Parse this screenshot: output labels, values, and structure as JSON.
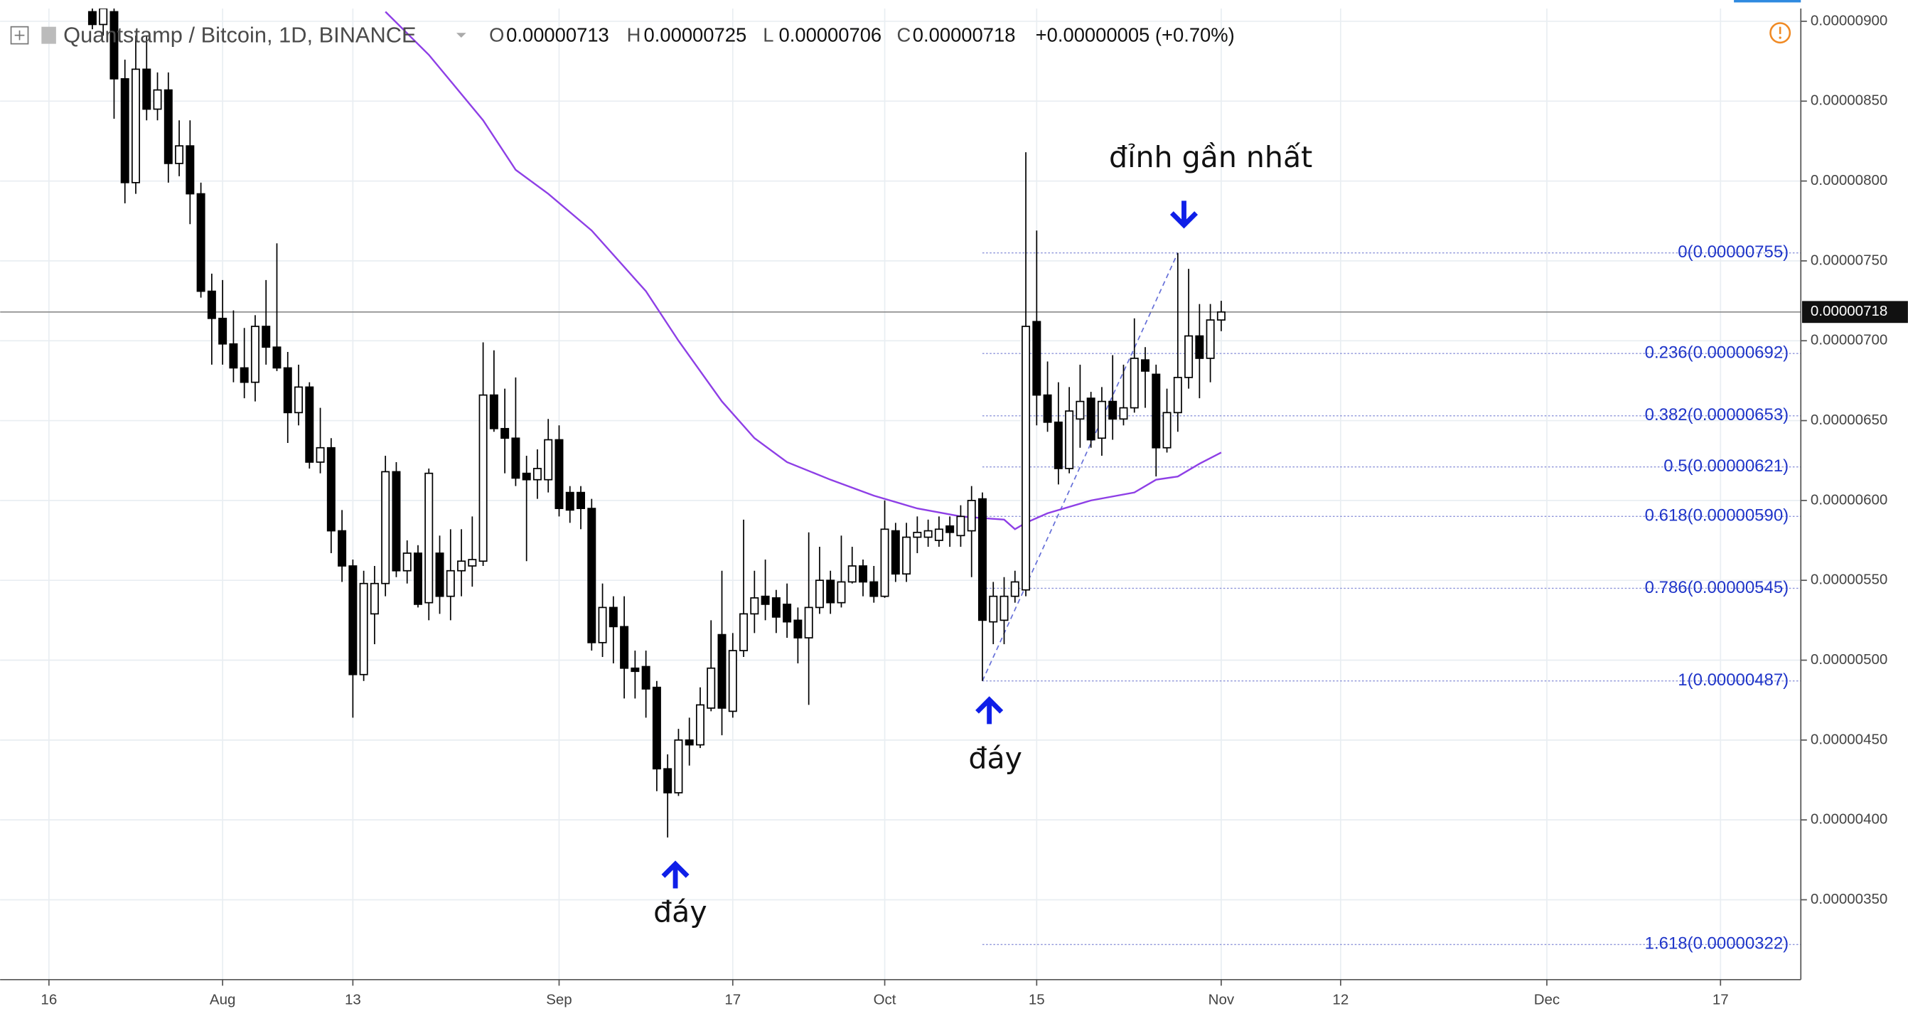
{
  "chart_data": {
    "type": "candlestick",
    "title": "Quantstamp / Bitcoin, 1D, BINANCE",
    "ohlc_header": [
      {
        "label": "O",
        "value": "0.00000713"
      },
      {
        "label": "H",
        "value": "0.00000725"
      },
      {
        "label": "L",
        "value": "0.00000706"
      },
      {
        "label": "C",
        "value": "0.00000718"
      }
    ],
    "change": "+0.00000005 (+0.70%)",
    "xlim": [
      -4.5,
      161.4
    ],
    "xticks": [
      {
        "value": 0,
        "label": "16"
      },
      {
        "value": 16,
        "label": "Aug"
      },
      {
        "value": 28,
        "label": "13"
      },
      {
        "value": 47,
        "label": "Sep"
      },
      {
        "value": 63,
        "label": "17"
      },
      {
        "value": 77,
        "label": "Oct"
      },
      {
        "value": 91,
        "label": "15"
      },
      {
        "value": 108,
        "label": "Nov"
      },
      {
        "value": 119,
        "label": "12"
      },
      {
        "value": 138,
        "label": "Dec"
      },
      {
        "value": 154,
        "label": "17"
      }
    ],
    "ylim": [
      3e-06,
      9.08e-06
    ],
    "yticks": [
      {
        "value": 3.5e-06,
        "label": "0.00000350"
      },
      {
        "value": 4e-06,
        "label": "0.00000400"
      },
      {
        "value": 4.5e-06,
        "label": "0.00000450"
      },
      {
        "value": 5e-06,
        "label": "0.00000500"
      },
      {
        "value": 5.5e-06,
        "label": "0.00000550"
      },
      {
        "value": 6e-06,
        "label": "0.00000600"
      },
      {
        "value": 6.5e-06,
        "label": "0.00000650"
      },
      {
        "value": 7e-06,
        "label": "0.00000700"
      },
      {
        "value": 7.5e-06,
        "label": "0.00000750"
      },
      {
        "value": 8e-06,
        "label": "0.00000800"
      },
      {
        "value": 8.5e-06,
        "label": "0.00000850"
      },
      {
        "value": 9e-06,
        "label": "0.00000900"
      }
    ],
    "grid": true,
    "colors": {
      "up": "#ffffff",
      "down": "#000000",
      "outline": "#000000"
    },
    "candles": {
      "x": [
        4,
        5,
        6,
        7,
        8,
        9,
        10,
        11,
        12,
        13,
        14,
        15,
        16,
        17,
        18,
        19,
        20,
        21,
        22,
        23,
        24,
        25,
        26,
        27,
        28,
        29,
        30,
        31,
        32,
        33,
        34,
        35,
        36,
        37,
        38,
        39,
        40,
        41,
        42,
        43,
        44,
        45,
        46,
        47,
        48,
        49,
        50,
        51,
        52,
        53,
        54,
        55,
        56,
        57,
        58,
        59,
        60,
        61,
        62,
        63,
        64,
        65,
        66,
        67,
        68,
        69,
        70,
        71,
        72,
        73,
        74,
        75,
        76,
        77,
        78,
        79,
        80,
        81,
        82,
        83,
        84,
        85,
        86,
        87,
        88,
        89,
        90,
        91,
        92,
        93,
        94,
        95,
        96,
        97,
        98,
        99,
        100,
        101,
        102,
        103,
        104,
        105,
        106,
        107,
        108
      ],
      "open": [
        9.06e-06,
        8.98e-06,
        9.06e-06,
        8.64e-06,
        7.99e-06,
        8.7e-06,
        8.45e-06,
        8.57e-06,
        8.11e-06,
        8.22e-06,
        7.92e-06,
        7.31e-06,
        7.14e-06,
        6.98e-06,
        6.83e-06,
        6.74e-06,
        7.09e-06,
        6.96e-06,
        6.83e-06,
        6.55e-06,
        6.71e-06,
        6.24e-06,
        6.33e-06,
        5.81e-06,
        5.59e-06,
        4.91e-06,
        5.29e-06,
        5.48e-06,
        6.18e-06,
        5.56e-06,
        5.67e-06,
        5.36e-06,
        5.67e-06,
        5.4e-06,
        5.56e-06,
        5.59e-06,
        5.62e-06,
        6.66e-06,
        6.45e-06,
        6.39e-06,
        6.17e-06,
        6.13e-06,
        6.13e-06,
        6.38e-06,
        6.05e-06,
        6.05e-06,
        5.95e-06,
        5.11e-06,
        5.33e-06,
        5.21e-06,
        4.95e-06,
        4.96e-06,
        4.83e-06,
        4.32e-06,
        4.17e-06,
        4.5e-06,
        4.47e-06,
        4.7e-06,
        5.16e-06,
        4.68e-06,
        5.06e-06,
        5.29e-06,
        5.4e-06,
        5.39e-06,
        5.35e-06,
        5.25e-06,
        5.14e-06,
        5.33e-06,
        5.5e-06,
        5.36e-06,
        5.49e-06,
        5.59e-06,
        5.49e-06,
        5.4e-06,
        5.81e-06,
        5.54e-06,
        5.77e-06,
        5.77e-06,
        5.75e-06,
        5.84e-06,
        5.78e-06,
        5.81e-06,
        6.01e-06,
        5.24e-06,
        5.25e-06,
        5.4e-06,
        5.44e-06,
        7.12e-06,
        6.66e-06,
        6.49e-06,
        6.2e-06,
        6.51e-06,
        6.64e-06,
        6.39e-06,
        6.62e-06,
        6.51e-06,
        6.58e-06,
        6.88e-06,
        6.79e-06,
        6.33e-06,
        6.55e-06,
        6.77e-06,
        7.03e-06,
        6.89e-06,
        7.13e-06
      ],
      "high": [
        9.14e-06,
        9.14e-06,
        9.14e-06,
        8.76e-06,
        8.91e-06,
        8.91e-06,
        8.68e-06,
        8.68e-06,
        8.38e-06,
        8.38e-06,
        7.99e-06,
        7.42e-06,
        7.38e-06,
        7.19e-06,
        7.08e-06,
        7.16e-06,
        7.38e-06,
        7.61e-06,
        6.93e-06,
        6.85e-06,
        6.74e-06,
        6.58e-06,
        6.39e-06,
        5.94e-06,
        5.63e-06,
        5.56e-06,
        5.59e-06,
        6.28e-06,
        6.24e-06,
        5.75e-06,
        5.72e-06,
        6.2e-06,
        5.78e-06,
        5.82e-06,
        5.82e-06,
        5.9e-06,
        6.99e-06,
        6.94e-06,
        6.7e-06,
        6.77e-06,
        6.28e-06,
        6.32e-06,
        6.51e-06,
        6.47e-06,
        6.09e-06,
        6.09e-06,
        6.01e-06,
        5.48e-06,
        5.4e-06,
        5.4e-06,
        5.06e-06,
        5.06e-06,
        4.87e-06,
        4.41e-06,
        4.57e-06,
        4.64e-06,
        4.83e-06,
        5.25e-06,
        5.56e-06,
        5.17e-06,
        5.88e-06,
        5.56e-06,
        5.63e-06,
        5.44e-06,
        5.48e-06,
        5.33e-06,
        5.8e-06,
        5.71e-06,
        5.56e-06,
        5.78e-06,
        5.71e-06,
        5.63e-06,
        5.59e-06,
        6e-06,
        5.86e-06,
        5.86e-06,
        5.9e-06,
        5.88e-06,
        5.9e-06,
        5.9e-06,
        5.97e-06,
        6.09e-06,
        6.05e-06,
        5.49e-06,
        5.52e-06,
        5.56e-06,
        8.18e-06,
        7.69e-06,
        6.87e-06,
        6.74e-06,
        6.71e-06,
        6.85e-06,
        6.68e-06,
        6.71e-06,
        6.91e-06,
        6.85e-06,
        7.14e-06,
        6.96e-06,
        6.85e-06,
        6.7e-06,
        7.55e-06,
        7.45e-06,
        7.23e-06,
        7.23e-06,
        7.25e-06
      ],
      "low": [
        8.95e-06,
        8.91e-06,
        8.39e-06,
        7.86e-06,
        7.92e-06,
        8.38e-06,
        8.38e-06,
        7.99e-06,
        8.03e-06,
        7.73e-06,
        7.27e-06,
        6.85e-06,
        6.85e-06,
        6.74e-06,
        6.64e-06,
        6.62e-06,
        6.85e-06,
        6.81e-06,
        6.36e-06,
        6.47e-06,
        6.2e-06,
        6.17e-06,
        5.67e-06,
        5.49e-06,
        4.64e-06,
        4.87e-06,
        5.1e-06,
        5.4e-06,
        5.52e-06,
        5.48e-06,
        5.33e-06,
        5.25e-06,
        5.29e-06,
        5.25e-06,
        5.4e-06,
        5.46e-06,
        5.59e-06,
        6.43e-06,
        6.17e-06,
        6.09e-06,
        5.62e-06,
        6.01e-06,
        6.05e-06,
        5.9e-06,
        5.86e-06,
        5.82e-06,
        5.06e-06,
        5.02e-06,
        4.98e-06,
        4.76e-06,
        4.76e-06,
        4.64e-06,
        4.18e-06,
        3.89e-06,
        4.15e-06,
        4.34e-06,
        4.45e-06,
        4.68e-06,
        4.53e-06,
        4.64e-06,
        5.02e-06,
        5.17e-06,
        5.25e-06,
        5.17e-06,
        5.14e-06,
        4.98e-06,
        4.72e-06,
        5.29e-06,
        5.29e-06,
        5.33e-06,
        5.48e-06,
        5.4e-06,
        5.36e-06,
        5.39e-06,
        5.49e-06,
        5.49e-06,
        5.67e-06,
        5.71e-06,
        5.71e-06,
        5.71e-06,
        5.71e-06,
        5.52e-06,
        4.87e-06,
        5.1e-06,
        5.1e-06,
        5.36e-06,
        5.4e-06,
        6.47e-06,
        6.43e-06,
        6.1e-06,
        6.17e-06,
        6.33e-06,
        6.33e-06,
        6.28e-06,
        6.38e-06,
        6.47e-06,
        6.55e-06,
        6.58e-06,
        6.15e-06,
        6.3e-06,
        6.43e-06,
        6.7e-06,
        6.64e-06,
        6.74e-06,
        7.06e-06
      ],
      "close": [
        8.98e-06,
        9.08e-06,
        8.64e-06,
        7.99e-06,
        8.7e-06,
        8.45e-06,
        8.57e-06,
        8.11e-06,
        8.22e-06,
        7.92e-06,
        7.31e-06,
        7.14e-06,
        6.98e-06,
        6.83e-06,
        6.74e-06,
        7.09e-06,
        6.96e-06,
        6.83e-06,
        6.55e-06,
        6.71e-06,
        6.24e-06,
        6.33e-06,
        5.81e-06,
        5.59e-06,
        4.91e-06,
        5.48e-06,
        5.48e-06,
        6.18e-06,
        5.56e-06,
        5.67e-06,
        5.35e-06,
        6.17e-06,
        5.4e-06,
        5.56e-06,
        5.62e-06,
        5.63e-06,
        6.66e-06,
        6.45e-06,
        6.39e-06,
        6.14e-06,
        6.13e-06,
        6.2e-06,
        6.38e-06,
        5.95e-06,
        5.94e-06,
        5.95e-06,
        5.11e-06,
        5.33e-06,
        5.21e-06,
        4.95e-06,
        4.93e-06,
        4.82e-06,
        4.32e-06,
        4.17e-06,
        4.5e-06,
        4.47e-06,
        4.72e-06,
        4.95e-06,
        4.7e-06,
        5.06e-06,
        5.29e-06,
        5.39e-06,
        5.35e-06,
        5.27e-06,
        5.24e-06,
        5.14e-06,
        5.33e-06,
        5.5e-06,
        5.36e-06,
        5.49e-06,
        5.59e-06,
        5.49e-06,
        5.4e-06,
        5.82e-06,
        5.54e-06,
        5.77e-06,
        5.8e-06,
        5.81e-06,
        5.82e-06,
        5.8e-06,
        5.9e-06,
        6e-06,
        5.25e-06,
        5.4e-06,
        5.4e-06,
        5.49e-06,
        7.09e-06,
        6.66e-06,
        6.49e-06,
        6.2e-06,
        6.56e-06,
        6.62e-06,
        6.38e-06,
        6.62e-06,
        6.51e-06,
        6.58e-06,
        6.89e-06,
        6.81e-06,
        6.33e-06,
        6.55e-06,
        6.77e-06,
        7.03e-06,
        6.89e-06,
        7.13e-06,
        7.18e-06
      ]
    },
    "overlays": [
      {
        "color": "#8e3fe6",
        "x": [
          31,
          35,
          40,
          43,
          46,
          50,
          55,
          58,
          62,
          65,
          68,
          72,
          76,
          80,
          84,
          88,
          89,
          90,
          92,
          96,
          100,
          102,
          104,
          106,
          108
        ],
        "values": [
          9.06e-06,
          8.79e-06,
          8.38e-06,
          8.07e-06,
          7.92e-06,
          7.69e-06,
          7.31e-06,
          7e-06,
          6.62e-06,
          6.39e-06,
          6.24e-06,
          6.13e-06,
          6.03e-06,
          5.95e-06,
          5.9e-06,
          5.88e-06,
          5.82e-06,
          5.86e-06,
          5.92e-06,
          6e-06,
          6.05e-06,
          6.13e-06,
          6.15e-06,
          6.23e-06,
          6.3e-06
        ]
      }
    ],
    "last_price": {
      "value": 7.18e-06,
      "label": "0.00000718"
    },
    "fib_color": "#1f35c9",
    "fib_start": 86,
    "fib_levels": [
      {
        "value": 7.55e-06,
        "label": "0(0.00000755)"
      },
      {
        "value": 6.92e-06,
        "label": "0.236(0.00000692)"
      },
      {
        "value": 6.53e-06,
        "label": "0.382(0.00000653)"
      },
      {
        "value": 6.21e-06,
        "label": "0.5(0.00000621)"
      },
      {
        "value": 5.9e-06,
        "label": "0.618(0.00000590)"
      },
      {
        "value": 5.45e-06,
        "label": "0.786(0.00000545)"
      },
      {
        "value": 4.87e-06,
        "label": "1(0.00000487)"
      },
      {
        "value": 3.22e-06,
        "label": "1.618(0.00000322)"
      }
    ],
    "trend_line": {
      "x": [
        86,
        104
      ],
      "values": [
        4.87e-06,
        7.55e-06
      ]
    },
    "annotations": [
      "đỉnh gần nhất",
      "đáy",
      "đáy"
    ]
  }
}
